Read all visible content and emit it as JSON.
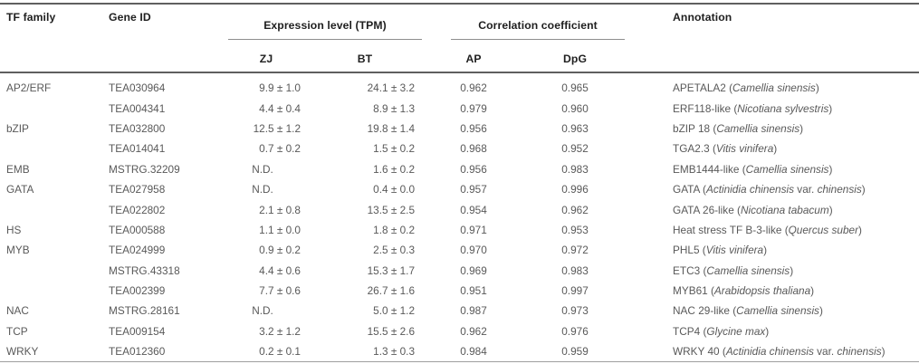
{
  "header": {
    "tf_family": "TF family",
    "gene_id": "Gene ID",
    "expression_group": "Expression level (TPM)",
    "zj": "ZJ",
    "bt": "BT",
    "correlation_group": "Correlation coefficient",
    "ap": "AP",
    "dpg": "DpG",
    "annotation": "Annotation"
  },
  "colors": {
    "header_text": "#1f1f1f",
    "body_text": "#595959",
    "rule_dark": "#5f5f5f",
    "rule_light": "#9e9e9e",
    "rule_group": "#8f8f8f",
    "background": "#ffffff"
  },
  "rows": [
    {
      "tf_family": "AP2/ERF",
      "gene_id": "TEA030964",
      "zj": "9.9 ± 1.0",
      "bt": "24.1 ± 3.2",
      "ap": "0.962",
      "dpg": "0.965",
      "annotation": [
        {
          "t": "APETALA2 ("
        },
        {
          "t": "Camellia sinensis",
          "i": true
        },
        {
          "t": ")"
        }
      ]
    },
    {
      "tf_family": "",
      "gene_id": "TEA004341",
      "zj": "4.4 ± 0.4",
      "bt": "8.9 ± 1.3",
      "ap": "0.979",
      "dpg": "0.960",
      "annotation": [
        {
          "t": "ERF118-like ("
        },
        {
          "t": "Nicotiana sylvestris",
          "i": true
        },
        {
          "t": ")"
        }
      ]
    },
    {
      "tf_family": "bZIP",
      "gene_id": "TEA032800",
      "zj": "12.5 ± 1.2",
      "bt": "19.8 ± 1.4",
      "ap": "0.956",
      "dpg": "0.963",
      "annotation": [
        {
          "t": "bZIP 18 ("
        },
        {
          "t": "Camellia sinensis",
          "i": true
        },
        {
          "t": ")"
        }
      ]
    },
    {
      "tf_family": "",
      "gene_id": "TEA014041",
      "zj": "0.7 ± 0.2",
      "bt": "1.5 ± 0.2",
      "ap": "0.968",
      "dpg": "0.952",
      "annotation": [
        {
          "t": "TGA2.3 ("
        },
        {
          "t": "Vitis vinifera",
          "i": true
        },
        {
          "t": ")"
        }
      ]
    },
    {
      "tf_family": "EMB",
      "gene_id": "MSTRG.32209",
      "zj": "N.D.",
      "bt": "1.6 ± 0.2",
      "ap": "0.956",
      "dpg": "0.983",
      "annotation": [
        {
          "t": "EMB1444-like ("
        },
        {
          "t": "Camellia sinensis",
          "i": true
        },
        {
          "t": ")"
        }
      ]
    },
    {
      "tf_family": "GATA",
      "gene_id": "TEA027958",
      "zj": "N.D.",
      "bt": "0.4 ± 0.0",
      "ap": "0.957",
      "dpg": "0.996",
      "annotation": [
        {
          "t": "GATA ("
        },
        {
          "t": "Actinidia chinensis",
          "i": true
        },
        {
          "t": " var. "
        },
        {
          "t": "chinensis",
          "i": true
        },
        {
          "t": ")"
        }
      ]
    },
    {
      "tf_family": "",
      "gene_id": "TEA022802",
      "zj": "2.1 ± 0.8",
      "bt": "13.5 ± 2.5",
      "ap": "0.954",
      "dpg": "0.962",
      "annotation": [
        {
          "t": "GATA 26-like ("
        },
        {
          "t": "Nicotiana tabacum",
          "i": true
        },
        {
          "t": ")"
        }
      ]
    },
    {
      "tf_family": "HS",
      "gene_id": "TEA000588",
      "zj": "1.1 ± 0.0",
      "bt": "1.8 ± 0.2",
      "ap": "0.971",
      "dpg": "0.953",
      "annotation": [
        {
          "t": "Heat stress TF B-3-like ("
        },
        {
          "t": "Quercus suber",
          "i": true
        },
        {
          "t": ")"
        }
      ]
    },
    {
      "tf_family": "MYB",
      "gene_id": "TEA024999",
      "zj": "0.9 ± 0.2",
      "bt": "2.5 ± 0.3",
      "ap": "0.970",
      "dpg": "0.972",
      "annotation": [
        {
          "t": "PHL5 ("
        },
        {
          "t": "Vitis vinifera",
          "i": true
        },
        {
          "t": ")"
        }
      ]
    },
    {
      "tf_family": "",
      "gene_id": "MSTRG.43318",
      "zj": "4.4 ± 0.6",
      "bt": "15.3 ± 1.7",
      "ap": "0.969",
      "dpg": "0.983",
      "annotation": [
        {
          "t": "ETC3 ("
        },
        {
          "t": "Camellia sinensis",
          "i": true
        },
        {
          "t": ")"
        }
      ]
    },
    {
      "tf_family": "",
      "gene_id": "TEA002399",
      "zj": "7.7 ± 0.6",
      "bt": "26.7 ± 1.6",
      "ap": "0.951",
      "dpg": "0.997",
      "annotation": [
        {
          "t": "MYB61 ("
        },
        {
          "t": "Arabidopsis thaliana",
          "i": true
        },
        {
          "t": ")"
        }
      ]
    },
    {
      "tf_family": "NAC",
      "gene_id": "MSTRG.28161",
      "zj": "N.D.",
      "bt": "5.0 ± 1.2",
      "ap": "0.987",
      "dpg": "0.973",
      "annotation": [
        {
          "t": "NAC 29-like ("
        },
        {
          "t": "Camellia sinensis",
          "i": true
        },
        {
          "t": ")"
        }
      ]
    },
    {
      "tf_family": "TCP",
      "gene_id": "TEA009154",
      "zj": "3.2 ± 1.2",
      "bt": "15.5 ± 2.6",
      "ap": "0.962",
      "dpg": "0.976",
      "annotation": [
        {
          "t": "TCP4 ("
        },
        {
          "t": "Glycine max",
          "i": true
        },
        {
          "t": ")"
        }
      ]
    },
    {
      "tf_family": "WRKY",
      "gene_id": "TEA012360",
      "zj": "0.2 ± 0.1",
      "bt": "1.3 ± 0.3",
      "ap": "0.984",
      "dpg": "0.959",
      "annotation": [
        {
          "t": "WRKY 40 ("
        },
        {
          "t": "Actinidia chinensis",
          "i": true
        },
        {
          "t": " var. "
        },
        {
          "t": "chinensis",
          "i": true
        },
        {
          "t": ")"
        }
      ]
    }
  ]
}
